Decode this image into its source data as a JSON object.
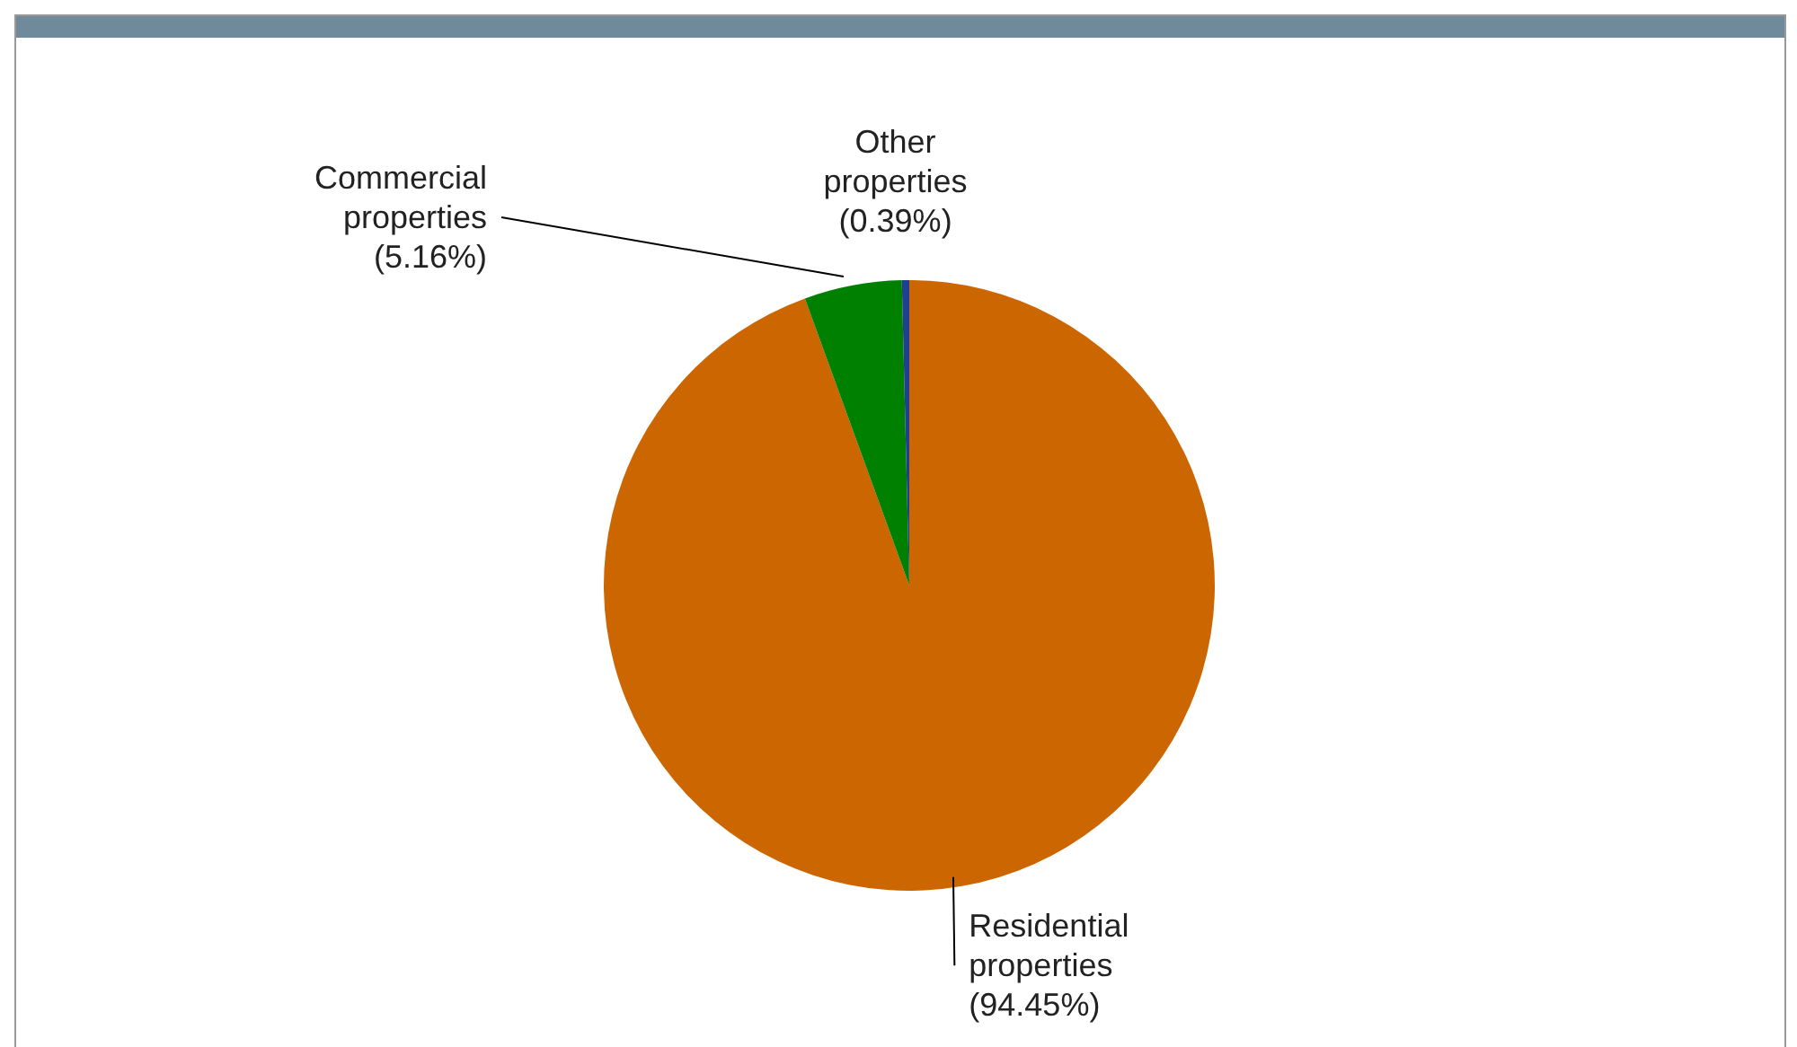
{
  "chart_data": {
    "type": "pie",
    "categories": [
      "Residential properties",
      "Commercial properties",
      "Other properties"
    ],
    "values": [
      94.45,
      5.16,
      0.39
    ],
    "colors": [
      "#cc6600",
      "#008000",
      "#1f3f8f"
    ],
    "value_labels": [
      "(94.45%)",
      "(5.16%)",
      "(0.39%)"
    ],
    "legend": false
  }
}
